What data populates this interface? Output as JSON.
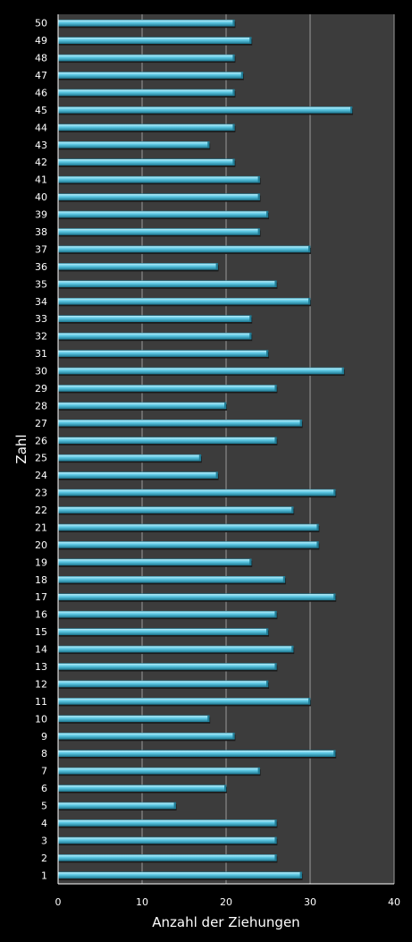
{
  "chart_data": {
    "type": "bar",
    "orientation": "horizontal",
    "title": "",
    "xlabel": "Anzahl der Ziehungen",
    "ylabel": "Zahl",
    "xlim": [
      0,
      40
    ],
    "x_ticks": [
      "0",
      "10",
      "20",
      "30",
      "40"
    ],
    "grid": "vertical",
    "categories": [
      "1",
      "2",
      "3",
      "4",
      "5",
      "6",
      "7",
      "8",
      "9",
      "10",
      "11",
      "12",
      "13",
      "14",
      "15",
      "16",
      "17",
      "18",
      "19",
      "20",
      "21",
      "22",
      "23",
      "24",
      "25",
      "26",
      "27",
      "28",
      "29",
      "30",
      "31",
      "32",
      "33",
      "34",
      "35",
      "36",
      "37",
      "38",
      "39",
      "40",
      "41",
      "42",
      "43",
      "44",
      "45",
      "46",
      "47",
      "48",
      "49",
      "50"
    ],
    "values": [
      29,
      26,
      26,
      26,
      14,
      20,
      24,
      33,
      21,
      18,
      30,
      25,
      26,
      28,
      25,
      26,
      33,
      27,
      23,
      31,
      31,
      28,
      33,
      19,
      17,
      26,
      29,
      20,
      26,
      34,
      25,
      23,
      23,
      30,
      26,
      19,
      30,
      24,
      25,
      24,
      24,
      21,
      18,
      21,
      35,
      21,
      22,
      21,
      23,
      21
    ],
    "colors": {
      "background": "#000000",
      "plot_area": "#3c3c3c",
      "bar": "#5cc8e4",
      "bar_highlight": "#c4f1fb",
      "bar_shadow": "#217c95",
      "gridline": "#9a9a9a",
      "text": "#ffffff"
    }
  }
}
